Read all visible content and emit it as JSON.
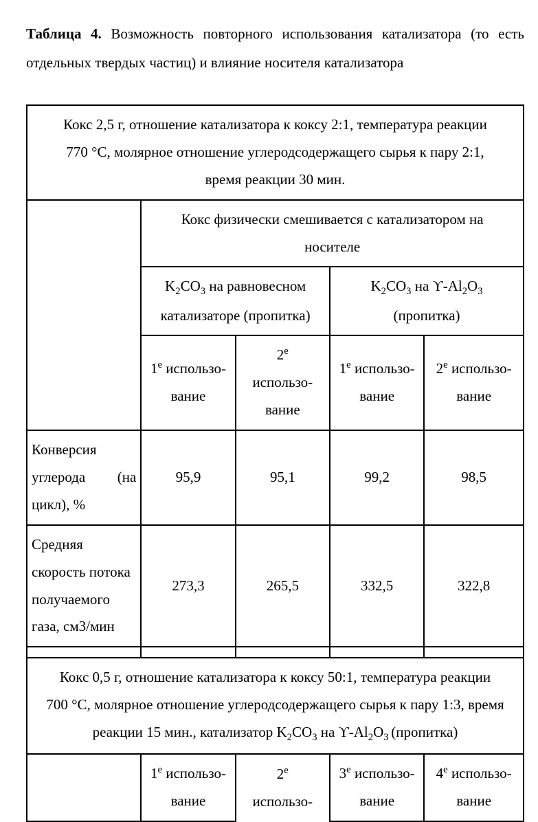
{
  "caption": {
    "label_bold": "Таблица 4.",
    "text": " Возможность повторного использования катализатора (то есть отдельных твердых частиц) и влияние носителя катализатора"
  },
  "table": {
    "conditions1_l1": "Кокс 2,5 г, отношение катализатора к коксу 2:1, температура реакции",
    "conditions1_l2": "770 °C, молярное отношение углеродсодержащего сырья к пару  2:1,",
    "conditions1_l3": "время реакции 30 мин.",
    "header_mix_l1": "Кокс физически смешивается с катализатором на",
    "header_mix_l2": "носителе",
    "cat1_l1_pre": "K",
    "cat1_l1_mid": "CO",
    "cat1_l1_post": " на равновесном",
    "cat1_l2": "катализаторе (пропитка)",
    "cat2_l1_pre": "K",
    "cat2_l1_mid": "CO",
    "cat2_l1_post": " на ϒ-Al",
    "cat2_l1_post2": "O",
    "cat2_l2": "(пропитка)",
    "use1_a": "1",
    "use1_b": " использо-",
    "use1_c": "вание",
    "use2_a": "2",
    "use2_b": "использо-",
    "use2_c": "вание",
    "use3_a": "1",
    "use3_b": " использо-",
    "use3_c": "вание",
    "use4_a": "2",
    "use4_b": " использо-",
    "use4_c": "вание",
    "row1_label_l1": "Конверсия",
    "row1_label_l2a": "углерода",
    "row1_label_l2b": "(на",
    "row1_label_l3": "цикл), %",
    "row1_v1": "95,9",
    "row1_v2": "95,1",
    "row1_v3": "99,2",
    "row1_v4": "98,5",
    "row2_label_l1": "Средняя",
    "row2_label_l2": "скорость  потока",
    "row2_label_l3": "получаемого",
    "row2_label_l4": "газа, см3/мин",
    "row2_v1": "273,3",
    "row2_v2": "265,5",
    "row2_v3": "332,5",
    "row2_v4": "322,8",
    "conditions2_l1": "Кокс 0,5 г, отношение катализатора к коксу 50:1, температура реакции",
    "conditions2_l2_pre": "700 °C, молярное отношение углеродсодержащего сырья к пару 1:3, время",
    "conditions2_l3_pre": "реакции 15 мин., катализатор K",
    "conditions2_l3_mid": "CO",
    "conditions2_l3_mid2": " на ϒ-Al",
    "conditions2_l3_mid3": "O",
    "conditions2_l3_post": " (пропитка)",
    "buse1_a": "1",
    "buse1_b": " использо-",
    "buse1_c": "вание",
    "buse2_a": "2",
    "buse2_b": "использо-",
    "buse3_a": "3",
    "buse3_b": " использо-",
    "buse3_c": "вание",
    "buse4_a": "4",
    "buse4_b": " использо-",
    "buse4_c": "вание"
  }
}
